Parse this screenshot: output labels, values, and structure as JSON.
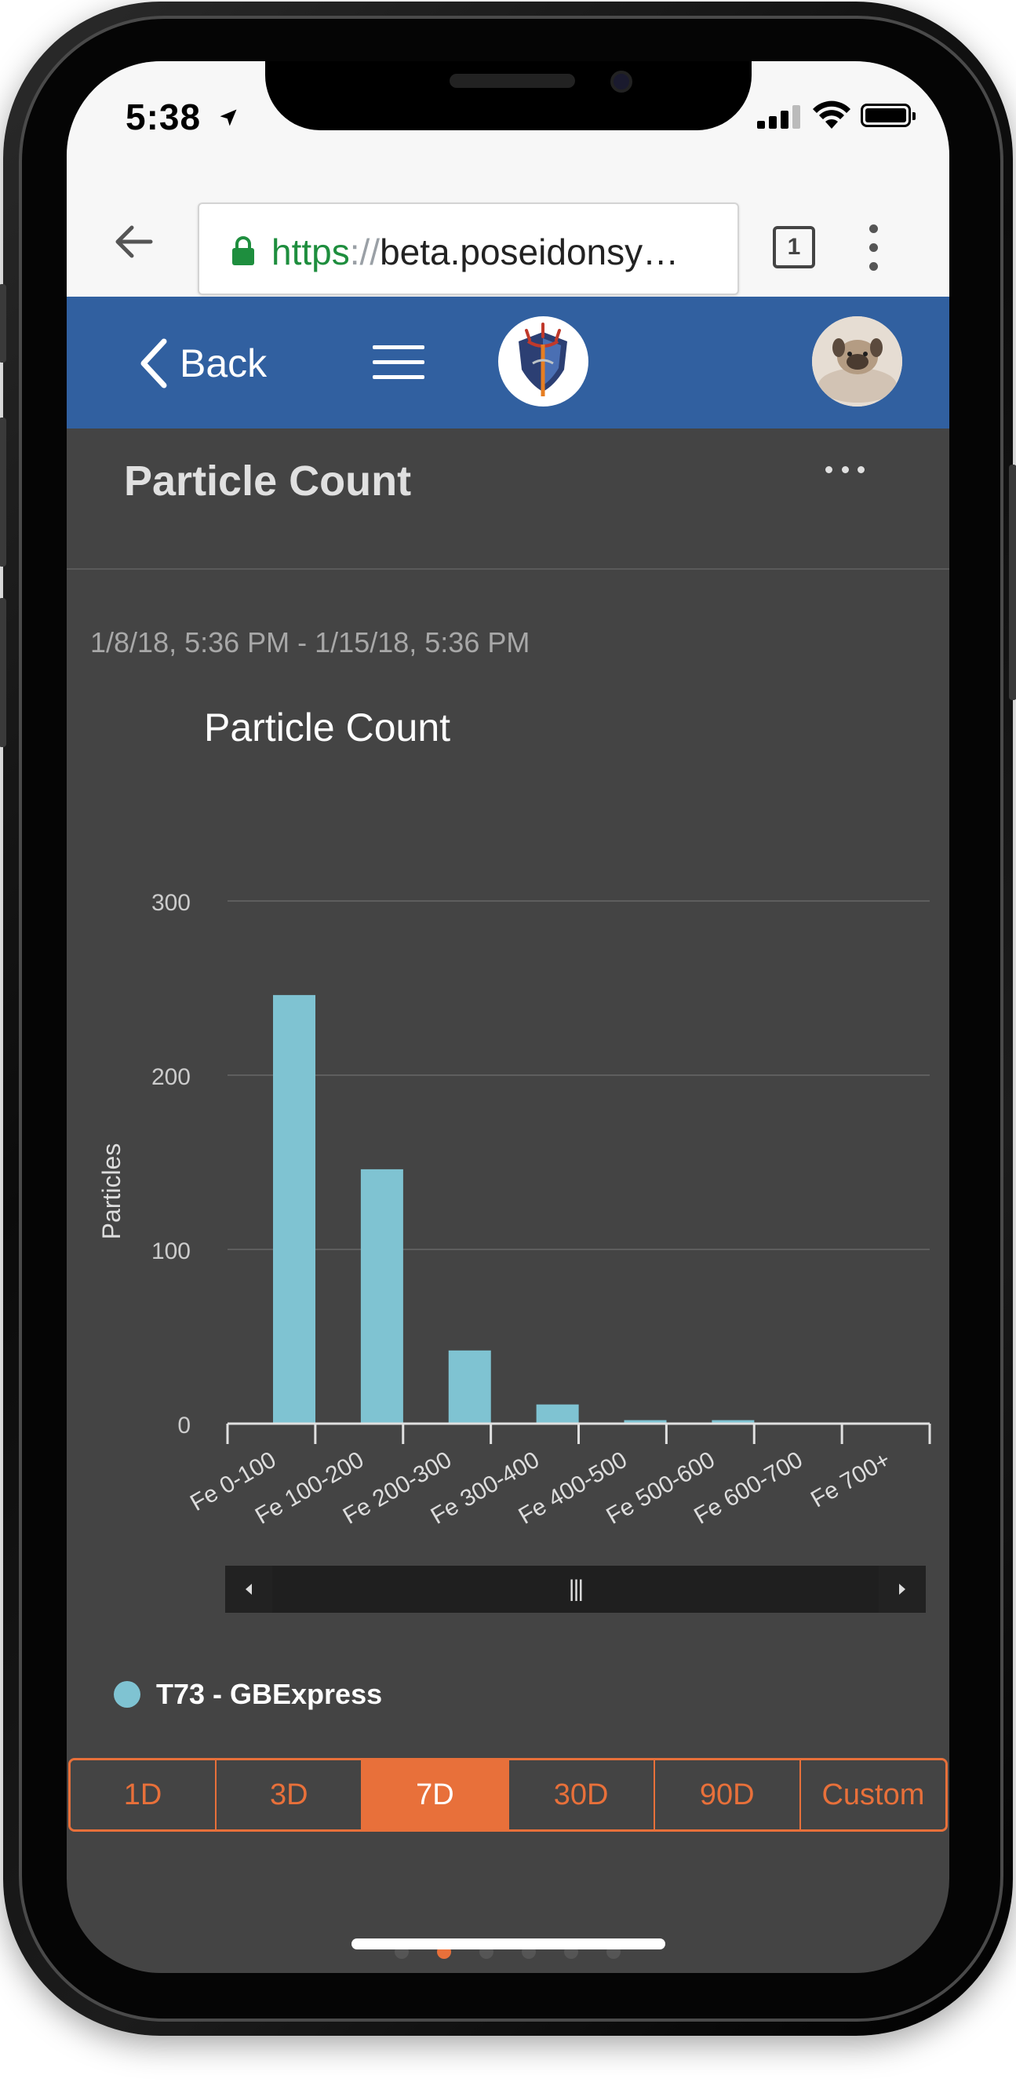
{
  "status_bar": {
    "time": "5:38",
    "location_icon": "location-arrow-icon",
    "signal_icon": "cellular-signal-icon",
    "wifi_icon": "wifi-icon",
    "battery_icon": "battery-full-icon"
  },
  "browser": {
    "url_scheme": "https",
    "url_separator": "://",
    "url_host": "beta.poseidonsy…",
    "tab_count": "1"
  },
  "app_nav": {
    "back_label": "Back",
    "menu_icon": "hamburger-menu-icon",
    "logo_icon": "poseidon-trident-logo",
    "avatar": "user-avatar"
  },
  "page": {
    "title": "Particle Count",
    "date_range": "1/8/18, 5:36 PM - 1/15/18, 5:36 PM"
  },
  "chart_data": {
    "type": "bar",
    "title": "Particle Count",
    "ylabel": "Particles",
    "xlabel": "",
    "categories": [
      "Fe 0-100",
      "Fe 100-200",
      "Fe 200-300",
      "Fe 300-400",
      "Fe 400-500",
      "Fe 500-600",
      "Fe 600-700",
      "Fe 700+"
    ],
    "series": [
      {
        "name": "T73 - GBExpress",
        "color": "#7fc3d2",
        "values": [
          246,
          146,
          42,
          11,
          2,
          2,
          0,
          0
        ]
      }
    ],
    "ylim": [
      0,
      300
    ],
    "yticks": [
      "0",
      "100",
      "200",
      "300"
    ],
    "grid": true,
    "legend_position": "bottom-left"
  },
  "range_selector": {
    "options": [
      "1D",
      "3D",
      "7D",
      "30D",
      "90D",
      "Custom"
    ],
    "selected": "7D",
    "accent": "#e8703a"
  },
  "colors": {
    "nav_blue": "#3160a0",
    "background": "#444444",
    "bar": "#7fc3d2"
  }
}
